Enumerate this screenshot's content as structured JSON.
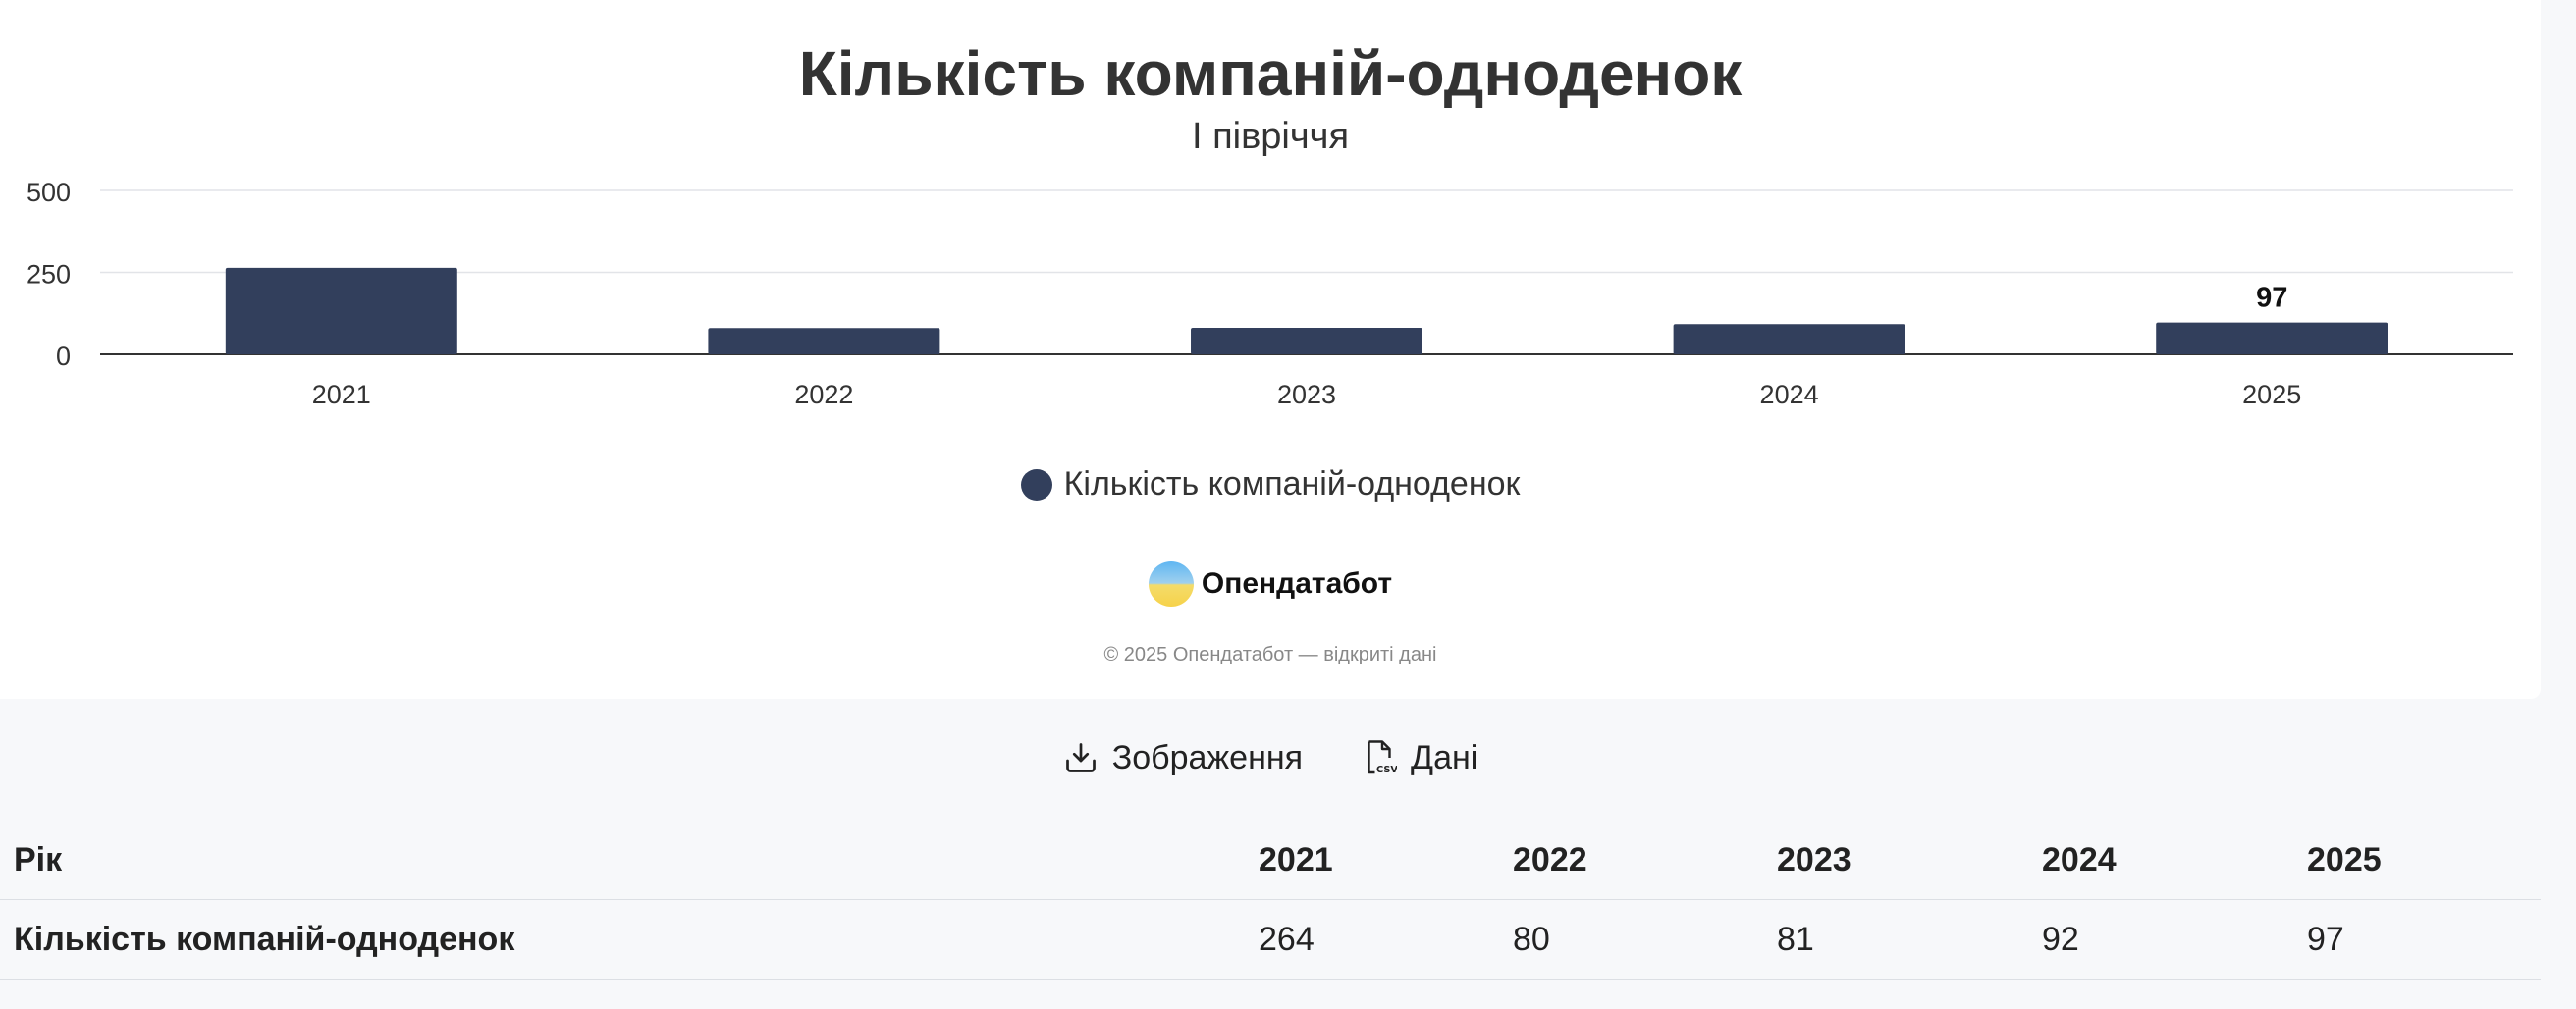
{
  "chart": {
    "title": "Кількість компаній-одноденок",
    "subtitle": "І півріччя"
  },
  "chart_data": {
    "type": "bar",
    "title": "Кількість компаній-одноденок",
    "subtitle": "І півріччя",
    "categories": [
      "2021",
      "2022",
      "2023",
      "2024",
      "2025"
    ],
    "series": [
      {
        "name": "Кількість компаній-одноденок",
        "values": [
          264,
          80,
          81,
          92,
          97
        ],
        "color": "#323f5c"
      }
    ],
    "y_ticks": [
      "0",
      "250",
      "500"
    ],
    "ylim": [
      0,
      500
    ],
    "data_labels": [
      {
        "category": "2025",
        "label": "97"
      }
    ],
    "grid": true,
    "legend": "bottom-center"
  },
  "legend": {
    "label": "Кількість компаній-одноденок",
    "color": "#323f5c"
  },
  "brand": {
    "name": "Опендатабот"
  },
  "copyright": "© 2025 Опендатабот — відкриті дані",
  "actions": {
    "image_label": "Зображення",
    "data_label": "Дані",
    "download_icon": "download-icon",
    "csv_icon": "csv-file-icon"
  },
  "table": {
    "header_label": "Рік",
    "years": [
      "2021",
      "2022",
      "2023",
      "2024",
      "2025"
    ],
    "row_label": "Кількість компаній-одноденок",
    "values": [
      "264",
      "80",
      "81",
      "92",
      "97"
    ]
  }
}
